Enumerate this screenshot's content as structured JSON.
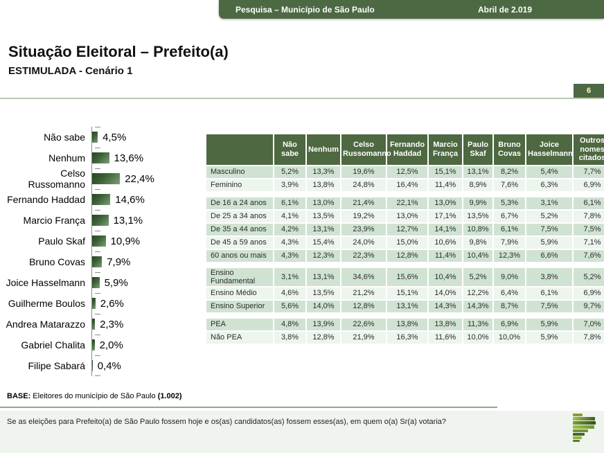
{
  "header": {
    "title": "Pesquisa – Município de São Paulo",
    "date": "Abril de 2.019"
  },
  "page": {
    "number": "6"
  },
  "titles": {
    "main": "Situação Eleitoral – Prefeito(a)",
    "sub": "ESTIMULADA - Cenário 1"
  },
  "chart_data": {
    "type": "bar",
    "orientation": "horizontal",
    "categories": [
      "Não sabe",
      "Nenhum",
      "Celso Russomanno",
      "Fernando Haddad",
      "Marcio França",
      "Paulo Skaf",
      "Bruno Covas",
      "Joice Hasselmann",
      "Guilherme Boulos",
      "Andrea Matarazzo",
      "Gabriel Chalita",
      "Filipe Sabará"
    ],
    "values": [
      4.5,
      13.6,
      22.4,
      14.6,
      13.1,
      10.9,
      7.9,
      5.9,
      2.6,
      2.3,
      2.0,
      0.4
    ],
    "labels": [
      "4,5%",
      "13,6%",
      "22,4%",
      "14,6%",
      "13,1%",
      "10,9%",
      "7,9%",
      "5,9%",
      "2,6%",
      "2,3%",
      "2,0%",
      "0,4%"
    ],
    "title": "",
    "xlabel": "",
    "ylabel": "",
    "xlim": [
      0,
      25
    ],
    "grid": false,
    "data_labels": true,
    "bar_color_dark": "#24431f",
    "bar_color_light": "#7da077"
  },
  "table": {
    "columns": [
      "",
      "Não sabe",
      "Nenhum",
      "Celso Russomanno",
      "Fernando Haddad",
      "Marcio França",
      "Paulo Skaf",
      "Bruno Covas",
      "Joice Hasselmann",
      "Outros nomes citados"
    ],
    "sections": [
      {
        "rows": [
          {
            "label": "Masculino",
            "values": [
              "5,2%",
              "13,3%",
              "19,6%",
              "12,5%",
              "15,1%",
              "13,1%",
              "8,2%",
              "5,4%",
              "7,7%"
            ]
          },
          {
            "label": "Feminino",
            "values": [
              "3,9%",
              "13,8%",
              "24,8%",
              "16,4%",
              "11,4%",
              "8,9%",
              "7,6%",
              "6,3%",
              "6,9%"
            ]
          }
        ]
      },
      {
        "rows": [
          {
            "label": "De 16 a 24 anos",
            "values": [
              "6,1%",
              "13,0%",
              "21,4%",
              "22,1%",
              "13,0%",
              "9,9%",
              "5,3%",
              "3,1%",
              "6,1%"
            ]
          },
          {
            "label": "De 25 a 34 anos",
            "values": [
              "4,1%",
              "13,5%",
              "19,2%",
              "13,0%",
              "17,1%",
              "13,5%",
              "6,7%",
              "5,2%",
              "7,8%"
            ]
          },
          {
            "label": "De 35 a 44 anos",
            "values": [
              "4,2%",
              "13,1%",
              "23,9%",
              "12,7%",
              "14,1%",
              "10,8%",
              "6,1%",
              "7,5%",
              "7,5%"
            ]
          },
          {
            "label": "De 45 a 59 anos",
            "values": [
              "4,3%",
              "15,4%",
              "24,0%",
              "15,0%",
              "10,6%",
              "9,8%",
              "7,9%",
              "5,9%",
              "7,1%"
            ]
          },
          {
            "label": "60 anos ou mais",
            "values": [
              "4,3%",
              "12,3%",
              "22,3%",
              "12,8%",
              "11,4%",
              "10,4%",
              "12,3%",
              "6,6%",
              "7,6%"
            ]
          }
        ]
      },
      {
        "rows": [
          {
            "label": "Ensino Fundamental",
            "values": [
              "3,1%",
              "13,1%",
              "34,6%",
              "15,6%",
              "10,4%",
              "5,2%",
              "9,0%",
              "3,8%",
              "5,2%"
            ]
          },
          {
            "label": "Ensino Médio",
            "values": [
              "4,6%",
              "13,5%",
              "21,2%",
              "15,1%",
              "14,0%",
              "12,2%",
              "6,4%",
              "6,1%",
              "6,9%"
            ]
          },
          {
            "label": "Ensino Superior",
            "values": [
              "5,6%",
              "14,0%",
              "12,8%",
              "13,1%",
              "14,3%",
              "14,3%",
              "8,7%",
              "7,5%",
              "9,7%"
            ]
          }
        ]
      },
      {
        "rows": [
          {
            "label": "PEA",
            "values": [
              "4,8%",
              "13,9%",
              "22,6%",
              "13,8%",
              "13,8%",
              "11,3%",
              "6,9%",
              "5,9%",
              "7,0%"
            ]
          },
          {
            "label": "Não PEA",
            "values": [
              "3,8%",
              "12,8%",
              "21,9%",
              "16,3%",
              "11,6%",
              "10,0%",
              "10,0%",
              "5,9%",
              "7,8%"
            ]
          }
        ]
      }
    ]
  },
  "footer": {
    "base_label": "BASE:",
    "base_text": " Eleitores do município de São Paulo ",
    "base_count": "(1.002)",
    "question": "Se as eleições para Prefeito(a) de São Paulo fossem hoje e os(as) candidatos(as) fossem esses(as), em quem o(a) Sr(a) votaria?"
  },
  "colors": {
    "header_green": "#4d6943",
    "table_header_green": "#4e6841",
    "row_green": "#d0e3d3",
    "row_light": "#edf5ee",
    "divider_green": "#8fa986",
    "strip_bg": "#eff4ee",
    "badge_text": "#ffffc8"
  },
  "logo": {
    "name": "pesquisa-logo",
    "bars": [
      {
        "w": 14,
        "h": 4,
        "c": [
          "#8a9a3a"
        ]
      },
      {
        "w": 32,
        "h": 5,
        "c": [
          "#a9c24a",
          "#3f5c20"
        ]
      },
      {
        "w": 33,
        "h": 5,
        "c": [
          "#7ba236",
          "#2f511d"
        ]
      },
      {
        "w": 31,
        "h": 5,
        "c": [
          "#9fc248",
          "#6f9434"
        ]
      },
      {
        "w": 22,
        "h": 4,
        "c": [
          "#75923a"
        ]
      },
      {
        "w": 17,
        "h": 4,
        "c": [
          "#456727"
        ]
      },
      {
        "w": 13,
        "h": 4,
        "c": [
          "#8fb243"
        ]
      },
      {
        "w": 10,
        "h": 3,
        "c": [
          "#5a7c2c"
        ]
      }
    ]
  }
}
